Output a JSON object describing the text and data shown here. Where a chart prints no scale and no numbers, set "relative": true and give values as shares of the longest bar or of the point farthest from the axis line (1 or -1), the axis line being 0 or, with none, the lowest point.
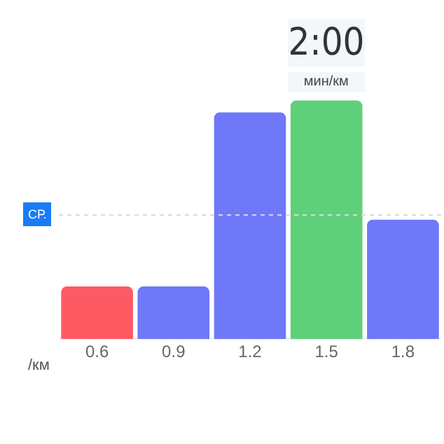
{
  "chart_data": {
    "type": "bar",
    "relative": true,
    "xlabel": "/км",
    "categories": [
      "0.6",
      "0.9",
      "1.2",
      "1.5",
      "1.8"
    ],
    "values": [
      0.22,
      0.22,
      0.95,
      1,
      0.5
    ],
    "colors": [
      "#fe5a64",
      "#6f78f8",
      "#6f78f8",
      "#5fd07a",
      "#6f78f8"
    ],
    "ref_lines": [
      {
        "axis": "y",
        "value": 0.52,
        "label": "СР.",
        "color": "#d9d9d9",
        "line_style": "dotted"
      }
    ],
    "annotations": [
      {
        "text": "2:00",
        "x": "1.5",
        "y": 1
      },
      {
        "text": "мин/км",
        "x": "1.5",
        "y": 1
      }
    ],
    "grid": false,
    "legend": false
  }
}
